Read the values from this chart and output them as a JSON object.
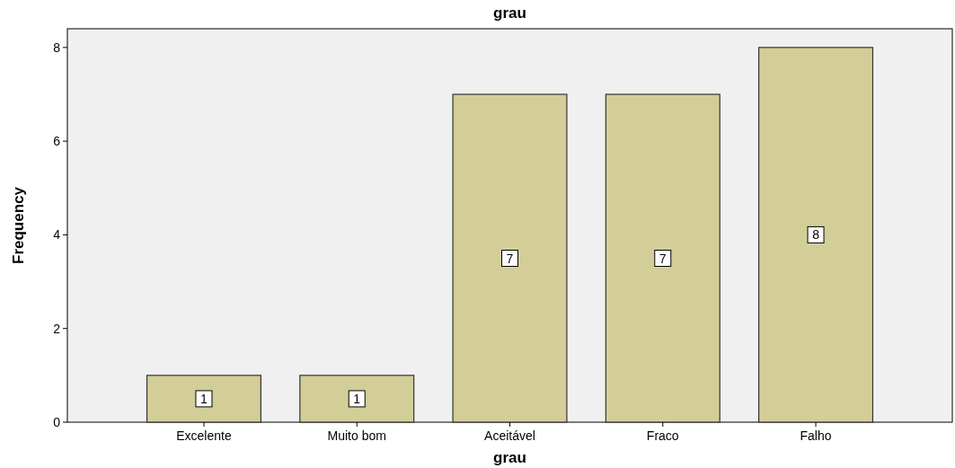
{
  "chart_data": {
    "type": "bar",
    "title": "grau",
    "xlabel": "grau",
    "ylabel": "Frequency",
    "categories": [
      "Excelente",
      "Muito bom",
      "Aceitável",
      "Fraco",
      "Falho"
    ],
    "values": [
      1,
      1,
      7,
      7,
      8
    ],
    "color": "#d3ce97",
    "ylim": [
      0,
      8.4
    ],
    "yticks": [
      0,
      2,
      4,
      6,
      8
    ],
    "grid": false,
    "data_labels": true
  }
}
